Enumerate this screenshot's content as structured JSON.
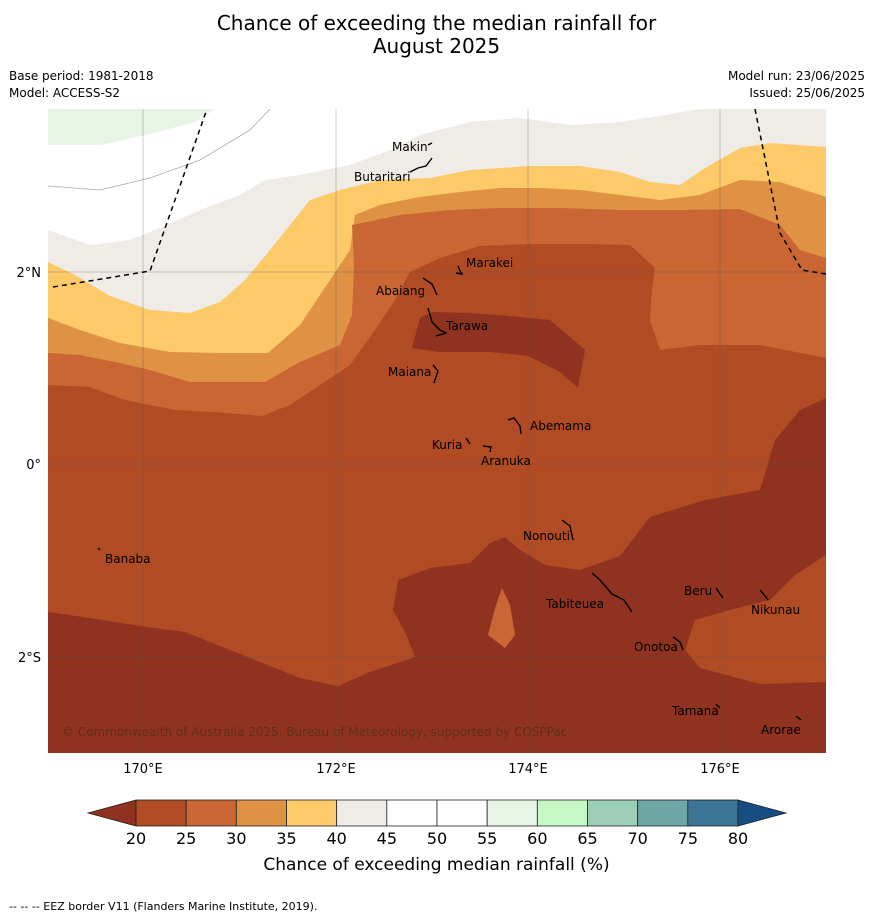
{
  "header": {
    "title_line1": "Chance of exceeding the median rainfall for",
    "title_line2": "August 2025",
    "base_period": "Base period: 1981-2018",
    "model": "Model: ACCESS-S2",
    "model_run": "Model run: 23/06/2025",
    "issued": "Issued: 25/06/2025"
  },
  "map": {
    "lon_ticks": [
      "170°E",
      "172°E",
      "174°E",
      "176°E"
    ],
    "lat_ticks": [
      "2°N",
      "0°",
      "2°S"
    ],
    "copyright": "© Commonwealth of Australia 2025, Bureau of Meteorology, supported by COSPPac",
    "islands": [
      "Makin",
      "Butaritari",
      "Marakei",
      "Abaiang",
      "Tarawa",
      "Maiana",
      "Abemama",
      "Kuria",
      "Aranuka",
      "Nonouti",
      "Banaba",
      "Beru",
      "Nikunau",
      "Tabiteuea",
      "Onotoa",
      "Tamana",
      "Arorae"
    ]
  },
  "colorbar": {
    "ticks": [
      "20",
      "25",
      "30",
      "35",
      "40",
      "45",
      "50",
      "55",
      "60",
      "65",
      "70",
      "75",
      "80"
    ],
    "colors": [
      "#8f3320",
      "#b04b24",
      "#c96633",
      "#df9244",
      "#fdca6a",
      "#efebe6",
      "#ffffff",
      "#ffffff",
      "#e8f4e6",
      "#c8f7c6",
      "#9dcfb8",
      "#6ea6a6",
      "#3d7596",
      "#174d80"
    ],
    "label": "Chance of exceeding median rainfall (%)"
  },
  "footnote": "--  --  -- EEZ border V11 (Flanders Marine Institute, 2019)."
}
